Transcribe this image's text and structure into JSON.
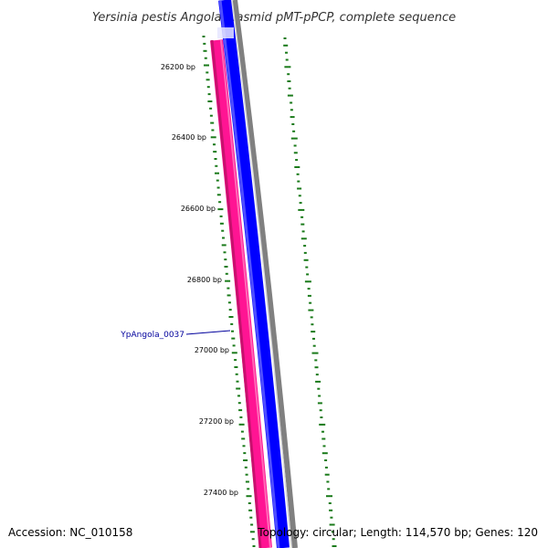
{
  "title": "Yersinia pestis Angola plasmid pMT-pPCP, complete sequence",
  "accession": "Accession: NC_010158",
  "summary": "Topology: circular; Length: 114,570 bp; Genes: 120",
  "gene_label": "YpAngola_0037",
  "position_labels": [
    "26200 bp",
    "26400 bp",
    "26600 bp",
    "26800 bp",
    "27000 bp",
    "27200 bp",
    "27400 bp"
  ],
  "colors": {
    "forward_cds": "#0000ff",
    "reverse_cds": "#ff1493",
    "backbone": "#808080",
    "gc_plot": "#1a7a1a",
    "gene_label": "#00009c"
  }
}
